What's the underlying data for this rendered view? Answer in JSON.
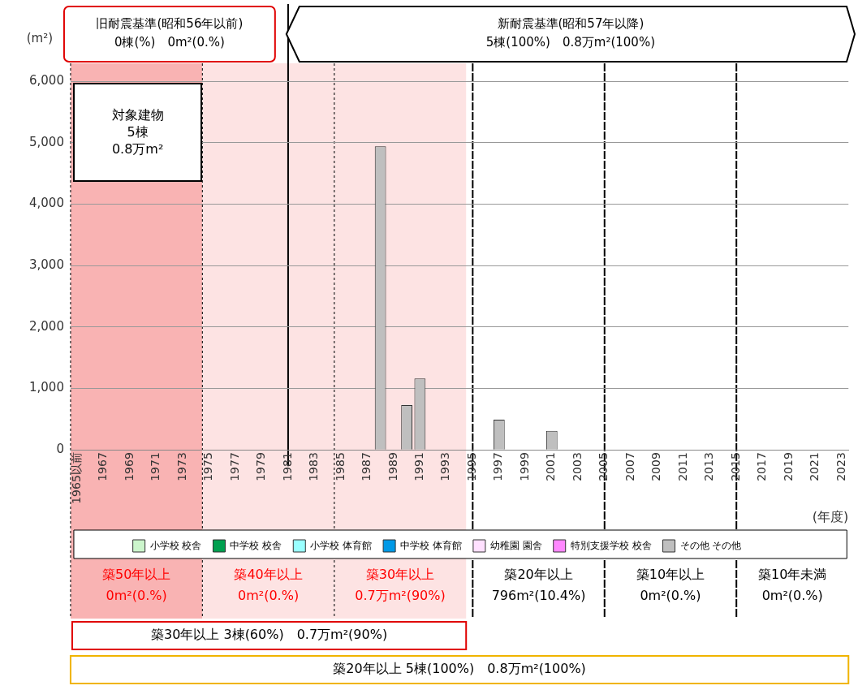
{
  "chart_data": {
    "type": "bar",
    "stacked": true,
    "ylabel": "(m²)",
    "xlabel": "(年度)",
    "categories": [
      "1965以前",
      null,
      "1967",
      null,
      "1969",
      null,
      "1971",
      null,
      "1973",
      null,
      "1975",
      null,
      "1977",
      null,
      "1979",
      null,
      "1981",
      null,
      "1983",
      null,
      "1985",
      null,
      "1987",
      null,
      "1989",
      null,
      "1991",
      null,
      "1993",
      null,
      "1995",
      null,
      "1997",
      null,
      "1999",
      null,
      "2001",
      null,
      "2003",
      null,
      "2005",
      null,
      "2007",
      null,
      "2009",
      null,
      "2011",
      null,
      "2013",
      null,
      "2015",
      null,
      "2017",
      null,
      "2019",
      null,
      "2021",
      null,
      "2023"
    ],
    "series": [
      {
        "name": "小学校 校舎",
        "color": "#ccf5cc",
        "values": [
          0,
          0,
          0,
          0,
          0,
          0,
          0,
          0,
          0,
          0,
          0,
          0,
          0,
          0,
          0,
          0,
          0,
          0,
          0,
          0,
          0,
          0,
          0,
          0,
          0,
          0,
          0,
          0,
          0,
          0,
          0,
          0,
          0,
          0,
          0,
          0,
          0,
          0,
          0,
          0,
          0,
          0,
          0,
          0,
          0,
          0,
          0,
          0,
          0,
          0,
          0,
          0,
          0,
          0,
          0,
          0,
          0,
          0,
          0
        ]
      },
      {
        "name": "中学校 校舎",
        "color": "#00a050",
        "values": [
          0,
          0,
          0,
          0,
          0,
          0,
          0,
          0,
          0,
          0,
          0,
          0,
          0,
          0,
          0,
          0,
          0,
          0,
          0,
          0,
          0,
          0,
          0,
          0,
          0,
          0,
          0,
          0,
          0,
          0,
          0,
          0,
          0,
          0,
          0,
          0,
          0,
          0,
          0,
          0,
          0,
          0,
          0,
          0,
          0,
          0,
          0,
          0,
          0,
          0,
          0,
          0,
          0,
          0,
          0,
          0,
          0,
          0,
          0
        ]
      },
      {
        "name": "小学校 体育館",
        "color": "#99ffff",
        "values": [
          0,
          0,
          0,
          0,
          0,
          0,
          0,
          0,
          0,
          0,
          0,
          0,
          0,
          0,
          0,
          0,
          0,
          0,
          0,
          0,
          0,
          0,
          0,
          0,
          0,
          0,
          0,
          0,
          0,
          0,
          0,
          0,
          0,
          0,
          0,
          0,
          0,
          0,
          0,
          0,
          0,
          0,
          0,
          0,
          0,
          0,
          0,
          0,
          0,
          0,
          0,
          0,
          0,
          0,
          0,
          0,
          0,
          0,
          0
        ]
      },
      {
        "name": "中学校 体育館",
        "color": "#0099e6",
        "values": [
          0,
          0,
          0,
          0,
          0,
          0,
          0,
          0,
          0,
          0,
          0,
          0,
          0,
          0,
          0,
          0,
          0,
          0,
          0,
          0,
          0,
          0,
          0,
          0,
          0,
          0,
          0,
          0,
          0,
          0,
          0,
          0,
          0,
          0,
          0,
          0,
          0,
          0,
          0,
          0,
          0,
          0,
          0,
          0,
          0,
          0,
          0,
          0,
          0,
          0,
          0,
          0,
          0,
          0,
          0,
          0,
          0,
          0,
          0
        ]
      },
      {
        "name": "幼稚園 園舎",
        "color": "#ffe0ff",
        "values": [
          0,
          0,
          0,
          0,
          0,
          0,
          0,
          0,
          0,
          0,
          0,
          0,
          0,
          0,
          0,
          0,
          0,
          0,
          0,
          0,
          0,
          0,
          0,
          0,
          0,
          0,
          0,
          0,
          0,
          0,
          0,
          0,
          0,
          0,
          0,
          0,
          0,
          0,
          0,
          0,
          0,
          0,
          0,
          0,
          0,
          0,
          0,
          0,
          0,
          0,
          0,
          0,
          0,
          0,
          0,
          0,
          0,
          0,
          0
        ]
      },
      {
        "name": "特別支援学校 校舎",
        "color": "#ff88ff",
        "values": [
          0,
          0,
          0,
          0,
          0,
          0,
          0,
          0,
          0,
          0,
          0,
          0,
          0,
          0,
          0,
          0,
          0,
          0,
          0,
          0,
          0,
          0,
          0,
          0,
          0,
          0,
          0,
          0,
          0,
          0,
          0,
          0,
          0,
          0,
          0,
          0,
          0,
          0,
          0,
          0,
          0,
          0,
          0,
          0,
          0,
          0,
          0,
          0,
          0,
          0,
          0,
          0,
          0,
          0,
          0,
          0,
          0,
          0,
          0
        ]
      },
      {
        "name": "その他 その他",
        "color": "#bfbfbf",
        "values": [
          0,
          0,
          0,
          0,
          0,
          0,
          0,
          0,
          0,
          0,
          0,
          0,
          0,
          0,
          0,
          0,
          0,
          0,
          0,
          0,
          0,
          0,
          0,
          4940,
          0,
          730,
          1160,
          0,
          0,
          0,
          0,
          0,
          490,
          0,
          0,
          0,
          310,
          0,
          0,
          0,
          0,
          0,
          0,
          0,
          0,
          0,
          0,
          0,
          0,
          0,
          0,
          0,
          0,
          0,
          0,
          0,
          0,
          0,
          0
        ]
      }
    ],
    "ylim": [
      0,
      6000
    ],
    "yticks": [
      {
        "value": 0,
        "label": "0"
      },
      {
        "value": 1000,
        "label": "1,000"
      },
      {
        "value": 2000,
        "label": "2,000"
      },
      {
        "value": 3000,
        "label": "3,000"
      },
      {
        "value": 4000,
        "label": "4,000"
      },
      {
        "value": 5000,
        "label": "5,000"
      },
      {
        "value": 6000,
        "label": "6,000"
      }
    ],
    "grid": "y",
    "legend": "bottom",
    "ref_lines": [
      {
        "axis": "x",
        "value": "1981",
        "line_style": "solid",
        "color": "#000000"
      },
      {
        "axis": "x",
        "value": "1995",
        "line_style": "dashed",
        "color": "#000000",
        "label": "築20年以上\n796m²(10.4%)"
      },
      {
        "axis": "x",
        "value": "2005",
        "line_style": "dashed",
        "color": "#000000",
        "label": "築10年以上\n0m²(0.%)"
      },
      {
        "axis": "x",
        "value": "2015",
        "line_style": "dashed",
        "color": "#000000",
        "label": "築10年未満\n0m²(0.%)"
      }
    ],
    "bands": [
      {
        "axis": "x",
        "from": "1965以前",
        "to": "1975",
        "label": "築50年以上\n0m²(0.%)",
        "color": "#f9b3b3"
      },
      {
        "axis": "x",
        "from": "1975",
        "to": "1985",
        "label": "築40年以上\n0m²(0.%)",
        "color": "#fde3e3"
      },
      {
        "axis": "x",
        "from": "1985",
        "to": "1995",
        "label": "築30年以上\n0.7万m²(90%)",
        "color": "#fde3e3"
      }
    ],
    "annotations": [
      "旧耐震基準(昭和56年以前)\n0棟(%)　0m²(0.%)",
      "新耐震基準(昭和57年以降)\n5棟(100%)　0.8万m²(100%)",
      "対象建物\n5棟\n0.8万m²",
      "築30年以上 3棟(60%)　0.7万m²(90%)",
      "築20年以上 5棟(100%)　0.8万m²(100%)"
    ]
  }
}
